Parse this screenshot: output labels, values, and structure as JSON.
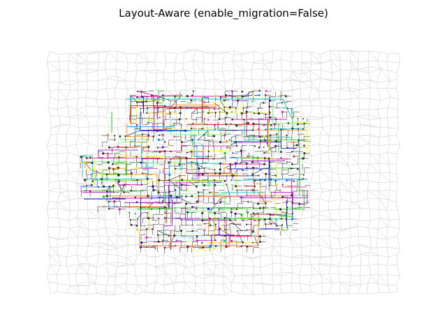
{
  "figure": {
    "title": "Layout-Aware (enable_migration=False)"
  },
  "colors": {
    "background_grid": "#dddddd",
    "routed_edges": "#222222",
    "node_fill": "#333333",
    "palette": [
      "#0000cc",
      "#00cc00",
      "#cc0000",
      "#ffcc00",
      "#cc00cc",
      "#00cccc",
      "#ff8800",
      "#8800cc",
      "#66ff66",
      "#ff00aa",
      "#0088ff",
      "#ffff00"
    ]
  },
  "diagram": {
    "type": "network-graph",
    "background_grid_nodes": "dense light-gray mesh",
    "foreground": "multicolored routed nets over central cluster"
  }
}
